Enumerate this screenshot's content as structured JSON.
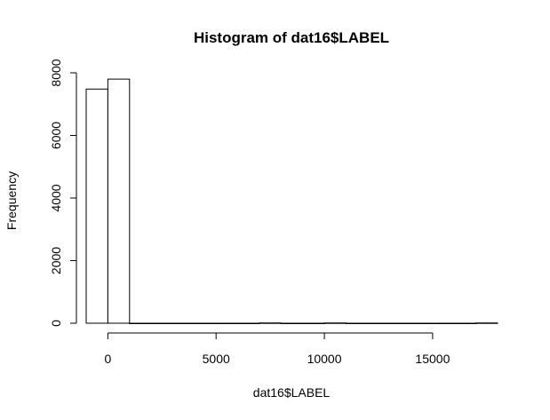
{
  "chart_data": {
    "type": "bar",
    "title": "Histogram of dat16$LABEL",
    "xlabel": "dat16$LABEL",
    "ylabel": "Frequency",
    "bin_width": 1000,
    "bins": [
      {
        "start": -1000,
        "end": 0,
        "count": 7480
      },
      {
        "start": 0,
        "end": 1000,
        "count": 7800
      },
      {
        "start": 1000,
        "end": 2000,
        "count": 0
      },
      {
        "start": 2000,
        "end": 3000,
        "count": 0
      },
      {
        "start": 3000,
        "end": 4000,
        "count": 0
      },
      {
        "start": 4000,
        "end": 5000,
        "count": 0
      },
      {
        "start": 5000,
        "end": 6000,
        "count": 0
      },
      {
        "start": 6000,
        "end": 7000,
        "count": 0
      },
      {
        "start": 7000,
        "end": 8000,
        "count": 8
      },
      {
        "start": 8000,
        "end": 9000,
        "count": 0
      },
      {
        "start": 9000,
        "end": 10000,
        "count": 0
      },
      {
        "start": 10000,
        "end": 11000,
        "count": 8
      },
      {
        "start": 11000,
        "end": 12000,
        "count": 0
      },
      {
        "start": 12000,
        "end": 13000,
        "count": 0
      },
      {
        "start": 13000,
        "end": 14000,
        "count": 0
      },
      {
        "start": 14000,
        "end": 15000,
        "count": 0
      },
      {
        "start": 15000,
        "end": 16000,
        "count": 0
      },
      {
        "start": 16000,
        "end": 17000,
        "count": 0
      },
      {
        "start": 17000,
        "end": 18000,
        "count": 8
      }
    ],
    "x_ticks": [
      0,
      5000,
      10000,
      15000
    ],
    "x_tick_labels": [
      "0",
      "5000",
      "10000",
      "15000"
    ],
    "y_ticks": [
      0,
      2000,
      4000,
      6000,
      8000
    ],
    "y_tick_labels": [
      "0",
      "2000",
      "4000",
      "6000",
      "8000"
    ],
    "xlim": [
      -1000,
      18000
    ],
    "ylim": [
      0,
      8000
    ],
    "grid": false,
    "colors": {
      "bar_fill": "#ffffff",
      "bar_stroke": "#000000"
    }
  }
}
